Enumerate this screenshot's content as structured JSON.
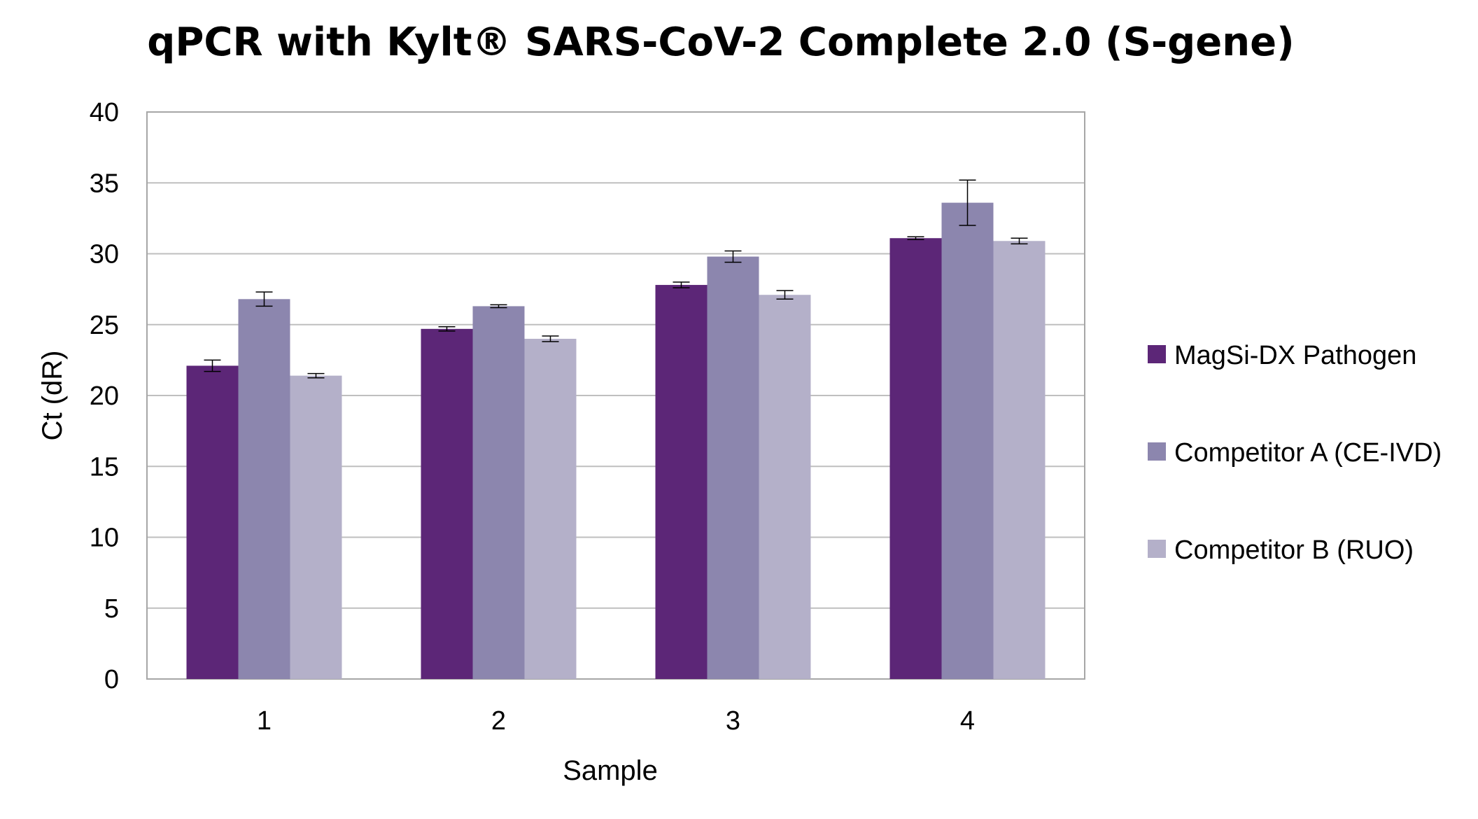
{
  "chart_data": {
    "type": "bar",
    "title": "qPCR with Kylt® SARS-CoV-2 Complete 2.0 (S-gene)",
    "xlabel": "Sample",
    "ylabel": "Ct (dR)",
    "ylim": [
      0,
      40
    ],
    "yticks": [
      0,
      5,
      10,
      15,
      20,
      25,
      30,
      35,
      40
    ],
    "categories": [
      "1",
      "2",
      "3",
      "4"
    ],
    "grid": true,
    "legend_position": "right",
    "series": [
      {
        "name": "MagSi-DX Pathogen",
        "color": "#5c2677",
        "values": [
          22.1,
          24.7,
          27.8,
          31.1
        ],
        "errors": [
          0.4,
          0.15,
          0.2,
          0.1
        ]
      },
      {
        "name": "Competitor A (CE-IVD)",
        "color": "#8c86ae",
        "values": [
          26.8,
          26.3,
          29.8,
          33.6
        ],
        "errors": [
          0.5,
          0.1,
          0.4,
          1.6
        ]
      },
      {
        "name": "Competitor B (RUO)",
        "color": "#b4b0c9",
        "values": [
          21.4,
          24.0,
          27.1,
          30.9
        ],
        "errors": [
          0.15,
          0.2,
          0.3,
          0.2
        ]
      }
    ]
  }
}
